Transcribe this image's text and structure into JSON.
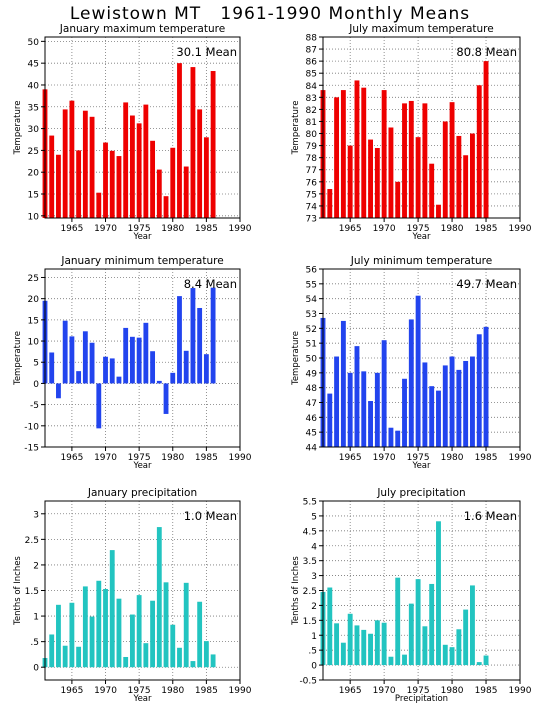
{
  "page": {
    "title": "Lewistown MT   1961-1990 Monthly Means"
  },
  "chart_data": [
    {
      "type": "bar",
      "title": "January maximum temperature",
      "xlabel": "Year",
      "ylabel": "Temperature",
      "mean_label": "30.1 Mean",
      "color": "#ee0000",
      "xlim": [
        1961,
        1990
      ],
      "ylim": [
        9.5,
        51
      ],
      "yticks": [
        10,
        15,
        20,
        25,
        30,
        35,
        40,
        45,
        50
      ],
      "xticks": [
        1965,
        1970,
        1975,
        1980,
        1985,
        1990
      ],
      "grid": true,
      "x": [
        1961,
        1962,
        1963,
        1964,
        1965,
        1966,
        1967,
        1968,
        1969,
        1970,
        1971,
        1972,
        1973,
        1974,
        1975,
        1976,
        1977,
        1978,
        1979,
        1980,
        1981,
        1982,
        1983,
        1984,
        1985,
        1986
      ],
      "values": [
        39,
        28.4,
        24,
        34.4,
        36.4,
        25,
        34.1,
        32.7,
        15.3,
        26.8,
        24.9,
        23.7,
        36,
        33,
        31.2,
        35.5,
        27.2,
        20.6,
        14.5,
        25.6,
        45,
        21.3,
        44.1,
        34.4,
        28,
        43.2
      ]
    },
    {
      "type": "bar",
      "title": "July maximum temperature",
      "xlabel": "Year",
      "ylabel": "Temperature",
      "mean_label": "80.8 Mean",
      "color": "#ee0000",
      "xlim": [
        1961,
        1990
      ],
      "ylim": [
        73,
        88
      ],
      "yticks": [
        73,
        74,
        75,
        76,
        77,
        78,
        79,
        80,
        81,
        82,
        83,
        84,
        85,
        86,
        87,
        88
      ],
      "xticks": [
        1965,
        1970,
        1975,
        1980,
        1985,
        1990
      ],
      "grid": true,
      "x": [
        1961,
        1962,
        1963,
        1964,
        1965,
        1966,
        1967,
        1968,
        1969,
        1970,
        1971,
        1972,
        1973,
        1974,
        1975,
        1976,
        1977,
        1978,
        1979,
        1980,
        1981,
        1982,
        1983,
        1984,
        1985
      ],
      "values": [
        83.6,
        75.4,
        83,
        83.6,
        79,
        84.4,
        83.8,
        79.5,
        78.8,
        83.6,
        80.5,
        76,
        82.5,
        82.7,
        79.7,
        82.5,
        77.5,
        74.1,
        81,
        82.6,
        79.8,
        78.2,
        80,
        84,
        86
      ]
    },
    {
      "type": "bar",
      "title": "January minimum temperature",
      "xlabel": "Year",
      "ylabel": "Temperature",
      "mean_label": "8.4 Mean",
      "color": "#2244ee",
      "xlim": [
        1961,
        1990
      ],
      "ylim": [
        -15,
        27
      ],
      "yticks": [
        -15,
        -10,
        -5,
        0,
        5,
        10,
        15,
        20,
        25
      ],
      "xticks": [
        1965,
        1970,
        1975,
        1980,
        1985,
        1990
      ],
      "grid": true,
      "x": [
        1961,
        1962,
        1963,
        1964,
        1965,
        1966,
        1967,
        1968,
        1969,
        1970,
        1971,
        1972,
        1973,
        1974,
        1975,
        1976,
        1977,
        1978,
        1979,
        1980,
        1981,
        1982,
        1983,
        1984,
        1985,
        1986
      ],
      "values": [
        19.5,
        7.3,
        -3.5,
        14.8,
        11.1,
        2.9,
        12.3,
        9.6,
        -10.6,
        6.3,
        5.9,
        1.6,
        13.1,
        11,
        10.8,
        14.3,
        7.6,
        0.6,
        -7.2,
        2.5,
        20.6,
        7.7,
        22.5,
        17.8,
        6.9,
        22.6
      ]
    },
    {
      "type": "bar",
      "title": "July minimum temperature",
      "xlabel": "Year",
      "ylabel": "Temperature",
      "mean_label": "49.7 Mean",
      "color": "#2244ee",
      "xlim": [
        1961,
        1990
      ],
      "ylim": [
        44,
        56
      ],
      "yticks": [
        44,
        45,
        46,
        47,
        48,
        49,
        50,
        51,
        52,
        53,
        54,
        55,
        56
      ],
      "xticks": [
        1965,
        1970,
        1975,
        1980,
        1985,
        1990
      ],
      "grid": true,
      "x": [
        1961,
        1962,
        1963,
        1964,
        1965,
        1966,
        1967,
        1968,
        1969,
        1970,
        1971,
        1972,
        1973,
        1974,
        1975,
        1976,
        1977,
        1978,
        1979,
        1980,
        1981,
        1982,
        1983,
        1984,
        1985
      ],
      "values": [
        52.7,
        47.6,
        50.1,
        52.5,
        49,
        50.8,
        49.1,
        47.1,
        49,
        51.2,
        45.3,
        45.1,
        48.6,
        52.6,
        54.2,
        49.7,
        48.1,
        47.8,
        49.5,
        50.1,
        49.2,
        49.8,
        50.1,
        51.6,
        52.1
      ]
    },
    {
      "type": "bar",
      "title": "January precipitation",
      "xlabel": "Year",
      "ylabel": "Tenths of Inches",
      "mean_label": "1.0 Mean",
      "color": "#22c4c0",
      "xlim": [
        1961,
        1990
      ],
      "ylim": [
        -0.25,
        3.25
      ],
      "yticks": [
        0,
        0.5,
        1,
        1.5,
        2,
        2.5,
        3
      ],
      "ytick_labels": [
        "0",
        ".5",
        "1",
        "1.5",
        "2",
        "2.5",
        "3"
      ],
      "xticks": [
        1965,
        1970,
        1975,
        1980,
        1985,
        1990
      ],
      "grid": true,
      "x": [
        1961,
        1962,
        1963,
        1964,
        1965,
        1966,
        1967,
        1968,
        1969,
        1970,
        1971,
        1972,
        1973,
        1974,
        1975,
        1976,
        1977,
        1978,
        1979,
        1980,
        1981,
        1982,
        1983,
        1984,
        1985,
        1986
      ],
      "values": [
        0.18,
        0.64,
        1.22,
        0.42,
        1.26,
        0.4,
        1.58,
        0.99,
        1.69,
        1.53,
        2.29,
        1.34,
        0.2,
        1.03,
        1.41,
        0.47,
        1.3,
        2.74,
        1.66,
        0.83,
        0.38,
        1.65,
        0.12,
        1.28,
        0.51,
        0.25
      ]
    },
    {
      "type": "bar",
      "title": "July precipitation",
      "xlabel": "Precipitation",
      "ylabel": "Tenths of Inches",
      "mean_label": "1.6 Mean",
      "color": "#22c4c0",
      "xlim": [
        1961,
        1990
      ],
      "ylim": [
        -0.5,
        5.5
      ],
      "yticks": [
        -0.5,
        0,
        0.5,
        1,
        1.5,
        2,
        2.5,
        3,
        3.5,
        4,
        4.5,
        5,
        5.5
      ],
      "ytick_labels": [
        "-0.5",
        "0",
        ".5",
        "1",
        "1.5",
        "2",
        "2.5",
        "3",
        "3.5",
        "4",
        "4.5",
        "5",
        "5.5"
      ],
      "xticks": [
        1965,
        1970,
        1975,
        1980,
        1985,
        1990
      ],
      "grid": true,
      "x": [
        1961,
        1962,
        1963,
        1964,
        1965,
        1966,
        1967,
        1968,
        1969,
        1970,
        1971,
        1972,
        1973,
        1974,
        1975,
        1976,
        1977,
        1978,
        1979,
        1980,
        1981,
        1982,
        1983,
        1984,
        1985
      ],
      "values": [
        2.45,
        2.6,
        1.4,
        0.75,
        1.72,
        1.33,
        1.18,
        1.05,
        1.5,
        1.42,
        0.28,
        2.93,
        0.35,
        2.06,
        2.88,
        1.3,
        2.72,
        4.82,
        0.68,
        0.6,
        1.2,
        1.86,
        2.67,
        0.1,
        0.32
      ]
    }
  ]
}
